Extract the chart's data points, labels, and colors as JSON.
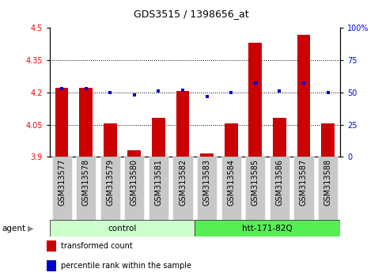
{
  "title": "GDS3515 / 1398656_at",
  "samples": [
    "GSM313577",
    "GSM313578",
    "GSM313579",
    "GSM313580",
    "GSM313581",
    "GSM313582",
    "GSM313583",
    "GSM313584",
    "GSM313585",
    "GSM313586",
    "GSM313587",
    "GSM313588"
  ],
  "bar_values": [
    4.22,
    4.22,
    4.055,
    3.93,
    4.08,
    4.205,
    3.915,
    4.055,
    4.43,
    4.08,
    4.47,
    4.055
  ],
  "percentile_values": [
    53,
    53,
    50,
    48,
    51,
    52,
    47,
    50,
    57,
    51,
    57,
    50
  ],
  "bar_bottom": 3.9,
  "ylim_left": [
    3.9,
    4.5
  ],
  "ylim_right": [
    0,
    100
  ],
  "yticks_left": [
    3.9,
    4.05,
    4.2,
    4.35,
    4.5
  ],
  "ytick_labels_left": [
    "3.9",
    "4.05",
    "4.2",
    "4.35",
    "4.5"
  ],
  "yticks_right": [
    0,
    25,
    50,
    75,
    100
  ],
  "ytick_labels_right": [
    "0",
    "25",
    "50",
    "75",
    "100%"
  ],
  "hlines": [
    4.05,
    4.2,
    4.35
  ],
  "bar_color": "#CC0000",
  "dot_color": "#0000CC",
  "dot_size": 12,
  "bar_width": 0.55,
  "agent_groups": [
    {
      "label": "control",
      "start": 0,
      "end": 6,
      "color": "#CCFFCC"
    },
    {
      "label": "htt-171-82Q",
      "start": 6,
      "end": 12,
      "color": "#55EE55"
    }
  ],
  "agent_label": "agent",
  "legend_items": [
    {
      "color": "#CC0000",
      "label": "transformed count"
    },
    {
      "color": "#0000CC",
      "label": "percentile rank within the sample"
    }
  ],
  "title_fontsize": 9,
  "tick_fontsize": 7,
  "label_fontsize": 7.5,
  "agent_fontsize": 7.5,
  "legend_fontsize": 7
}
